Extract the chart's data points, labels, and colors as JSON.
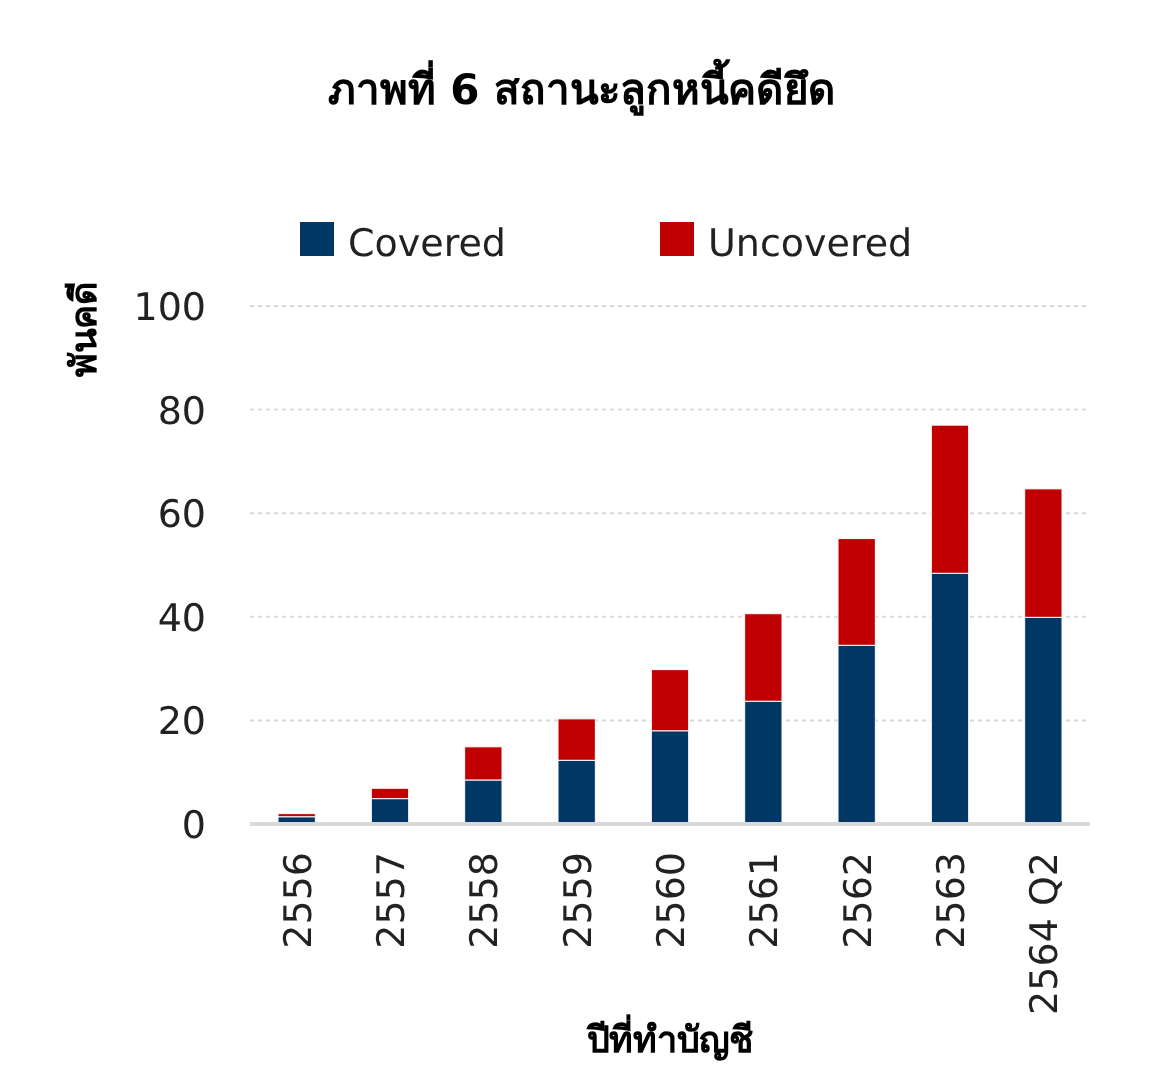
{
  "chart_data": {
    "type": "bar",
    "title": "ภาพที่ 6 สถานะลูกหนี้คดียึด",
    "xlabel": "ปีที่ทำบัญชี",
    "ylabel": "พันคดี",
    "categories": [
      "2556",
      "2557",
      "2558",
      "2559",
      "2560",
      "2561",
      "2562",
      "2563",
      "2564 Q2"
    ],
    "stacked": true,
    "ylim": [
      0,
      100
    ],
    "yticks": [
      0,
      20,
      40,
      60,
      80,
      100
    ],
    "grid": "y",
    "legend": "top",
    "series": [
      {
        "name": "Covered",
        "color": "#003764",
        "values": [
          1.4,
          4.9,
          8.5,
          12.3,
          18.0,
          23.7,
          34.5,
          48.4,
          39.9
        ]
      },
      {
        "name": "Uncovered",
        "color": "#c00000",
        "values": [
          0.6,
          2.0,
          6.4,
          8.0,
          11.8,
          16.9,
          20.6,
          28.6,
          24.8
        ]
      }
    ]
  }
}
